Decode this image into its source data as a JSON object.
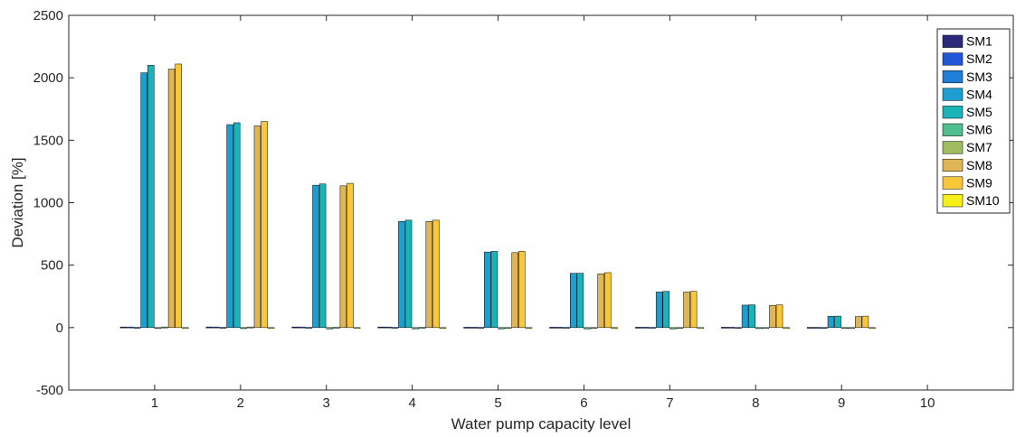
{
  "chart_data": {
    "type": "bar",
    "title": "",
    "xlabel": "Water pump capacity level",
    "ylabel": "Deviation [%]",
    "ylim": [
      -500,
      2500
    ],
    "yticks": [
      -500,
      0,
      500,
      1000,
      1500,
      2000,
      2500
    ],
    "categories": [
      "1",
      "2",
      "3",
      "4",
      "5",
      "6",
      "7",
      "8",
      "9",
      "10"
    ],
    "grid": false,
    "legend_position": "top-right",
    "series": [
      {
        "name": "SM1",
        "color": "#2b2a7a",
        "values": [
          5,
          5,
          5,
          5,
          3,
          3,
          3,
          3,
          2,
          0
        ]
      },
      {
        "name": "SM2",
        "color": "#1f57d6",
        "values": [
          5,
          5,
          5,
          5,
          3,
          3,
          3,
          3,
          2,
          0
        ]
      },
      {
        "name": "SM3",
        "color": "#1f7fd6",
        "values": [
          2,
          2,
          2,
          2,
          2,
          2,
          2,
          1,
          1,
          0
        ]
      },
      {
        "name": "SM4",
        "color": "#1c9ed0",
        "values": [
          2040,
          1625,
          1140,
          850,
          605,
          435,
          285,
          180,
          90,
          0
        ]
      },
      {
        "name": "SM5",
        "color": "#19b3b8",
        "values": [
          2100,
          1640,
          1150,
          860,
          610,
          435,
          290,
          182,
          92,
          0
        ]
      },
      {
        "name": "SM6",
        "color": "#4fbf8f",
        "values": [
          -5,
          -8,
          -10,
          -10,
          -10,
          -10,
          -10,
          -8,
          -4,
          0
        ]
      },
      {
        "name": "SM7",
        "color": "#9fbd5f",
        "values": [
          5,
          5,
          2,
          2,
          -5,
          -5,
          -5,
          -3,
          -2,
          0
        ]
      },
      {
        "name": "SM8",
        "color": "#dfb555",
        "values": [
          2070,
          1615,
          1135,
          850,
          600,
          430,
          285,
          178,
          88,
          0
        ]
      },
      {
        "name": "SM9",
        "color": "#f9c83a",
        "values": [
          2110,
          1650,
          1155,
          860,
          610,
          440,
          290,
          182,
          92,
          0
        ]
      },
      {
        "name": "SM10",
        "color": "#f5f018",
        "values": [
          -5,
          -5,
          -3,
          -3,
          -3,
          -3,
          -3,
          -3,
          -2,
          0
        ]
      }
    ]
  }
}
